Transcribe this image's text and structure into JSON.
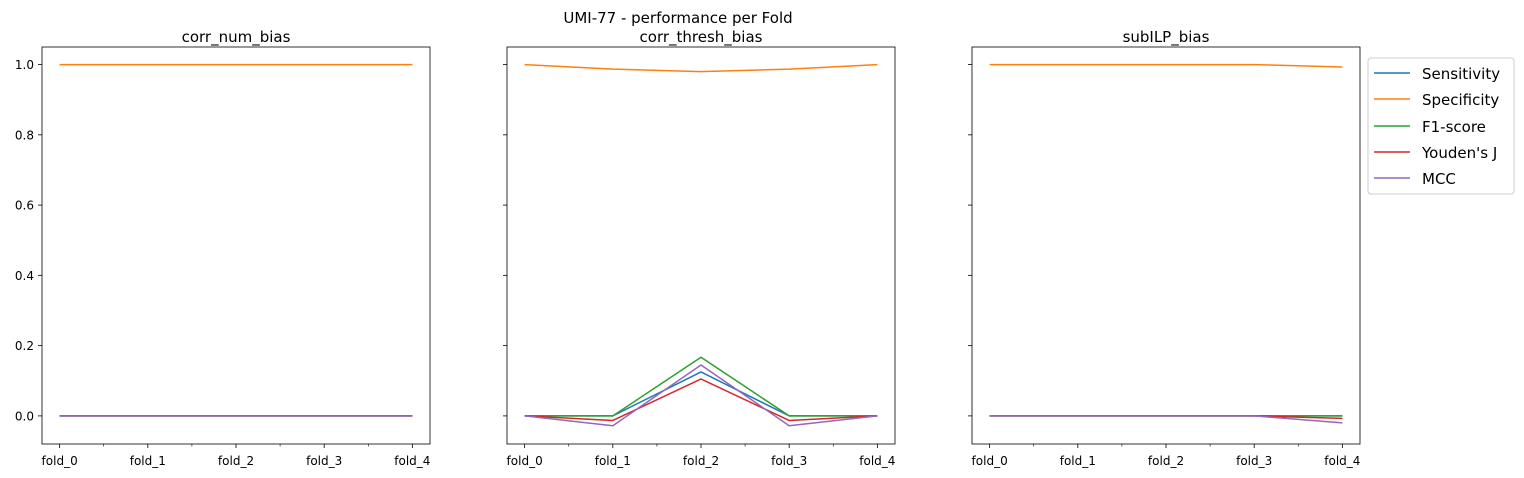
{
  "suptitle": "UMI-77 - performance per Fold",
  "colors": {
    "Sensitivity": "#1f77b4",
    "Specificity": "#ff7f0e",
    "F1-score": "#2ca02c",
    "Youden's J": "#d62728",
    "MCC": "#9467bd"
  },
  "legend": {
    "placement": "outside-right",
    "entries": [
      "Sensitivity",
      "Specificity",
      "F1-score",
      "Youden's J",
      "MCC"
    ]
  },
  "chart_data": [
    {
      "type": "line",
      "title": "corr_num_bias",
      "categories": [
        "fold_0",
        "fold_1",
        "fold_2",
        "fold_3",
        "fold_4"
      ],
      "ylim": [
        -0.08,
        1.05
      ],
      "yticks": [
        "0.0",
        "0.2",
        "0.4",
        "0.6",
        "0.8",
        "1.0"
      ],
      "grid": false,
      "series": [
        {
          "name": "Sensitivity",
          "values": [
            0,
            0,
            0,
            0,
            0
          ]
        },
        {
          "name": "Specificity",
          "values": [
            1,
            1,
            1,
            1,
            1
          ]
        },
        {
          "name": "F1-score",
          "values": [
            0,
            0,
            0,
            0,
            0
          ]
        },
        {
          "name": "Youden's J",
          "values": [
            0,
            0,
            0,
            0,
            0
          ]
        },
        {
          "name": "MCC",
          "values": [
            0,
            0,
            0,
            0,
            0
          ]
        }
      ]
    },
    {
      "type": "line",
      "title": "corr_thresh_bias",
      "categories": [
        "fold_0",
        "fold_1",
        "fold_2",
        "fold_3",
        "fold_4"
      ],
      "ylim": [
        -0.08,
        1.05
      ],
      "yticks": [
        "",
        "",
        "",
        "",
        "",
        ""
      ],
      "grid": false,
      "series": [
        {
          "name": "Sensitivity",
          "values": [
            0,
            0,
            0.125,
            0,
            0
          ]
        },
        {
          "name": "Specificity",
          "values": [
            1,
            0.987,
            0.98,
            0.987,
            1
          ]
        },
        {
          "name": "F1-score",
          "values": [
            0,
            0,
            0.167,
            0,
            0
          ]
        },
        {
          "name": "Youden's J",
          "values": [
            0,
            -0.013,
            0.105,
            -0.013,
            0
          ]
        },
        {
          "name": "MCC",
          "values": [
            0,
            -0.028,
            0.145,
            -0.028,
            0
          ]
        }
      ]
    },
    {
      "type": "line",
      "title": "subILP_bias",
      "categories": [
        "fold_0",
        "fold_1",
        "fold_2",
        "fold_3",
        "fold_4"
      ],
      "ylim": [
        -0.08,
        1.05
      ],
      "yticks": [
        "",
        "",
        "",
        "",
        "",
        ""
      ],
      "grid": false,
      "series": [
        {
          "name": "Sensitivity",
          "values": [
            0,
            0,
            0,
            0,
            0
          ]
        },
        {
          "name": "Specificity",
          "values": [
            1,
            1,
            1,
            1,
            0.993
          ]
        },
        {
          "name": "F1-score",
          "values": [
            0,
            0,
            0,
            0,
            0
          ]
        },
        {
          "name": "Youden's J",
          "values": [
            0,
            0,
            0,
            0,
            -0.007
          ]
        },
        {
          "name": "MCC",
          "values": [
            0,
            0,
            0,
            0,
            -0.02
          ]
        }
      ]
    }
  ]
}
